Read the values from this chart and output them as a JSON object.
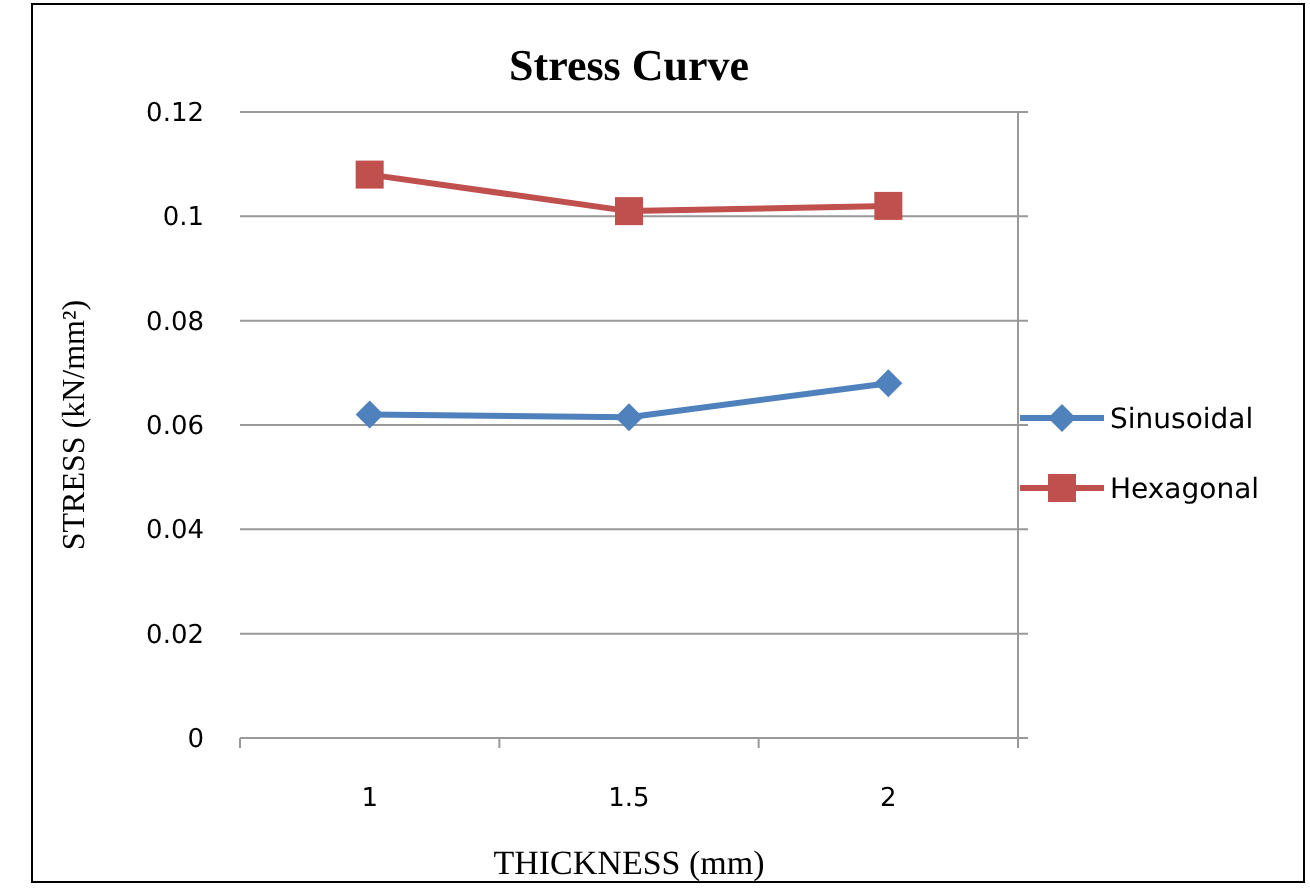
{
  "chart_data": {
    "type": "line",
    "title": "Stress Curve",
    "xlabel": "THICKNESS (mm)",
    "ylabel": "STRESS (kN/mm²)",
    "categories": [
      "1",
      "1.5",
      "2"
    ],
    "series": [
      {
        "name": "Sinusoidal",
        "color": "#4f81bd",
        "values": [
          0.062,
          0.0615,
          0.068
        ],
        "marker": "diamond"
      },
      {
        "name": "Hexagonal",
        "color": "#c0504d",
        "values": [
          0.108,
          0.101,
          0.102
        ],
        "marker": "square"
      }
    ],
    "ylim": [
      0,
      0.12
    ],
    "yticks": [
      0,
      0.02,
      0.04,
      0.06,
      0.08,
      0.1,
      0.12
    ],
    "grid": "y",
    "legend": "right"
  }
}
